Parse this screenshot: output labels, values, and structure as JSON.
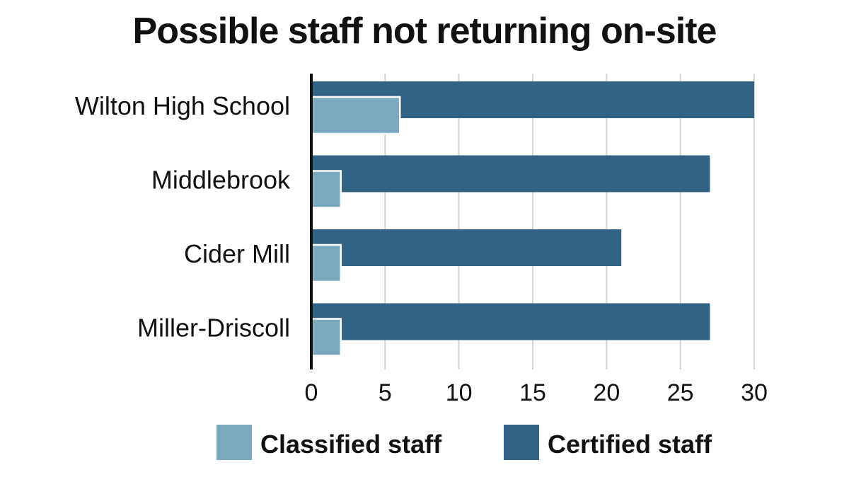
{
  "chart_data": {
    "type": "bar",
    "orientation": "horizontal",
    "title": "Possible staff not returning on-site",
    "categories": [
      "Wilton High School",
      "Middlebrook",
      "Cider Mill",
      "Miller-Driscoll"
    ],
    "series": [
      {
        "name": "Certified staff",
        "values": [
          30,
          27,
          21,
          27
        ],
        "color": "#336384"
      },
      {
        "name": "Classified staff",
        "values": [
          6,
          2,
          2,
          2
        ],
        "color": "#7aa8bf"
      }
    ],
    "xlim": [
      0,
      30
    ],
    "xticks": [
      0,
      5,
      10,
      15,
      20,
      25,
      30
    ],
    "grid": true,
    "legend_position": "bottom",
    "legend_order": [
      "Classified staff",
      "Certified staff"
    ]
  }
}
